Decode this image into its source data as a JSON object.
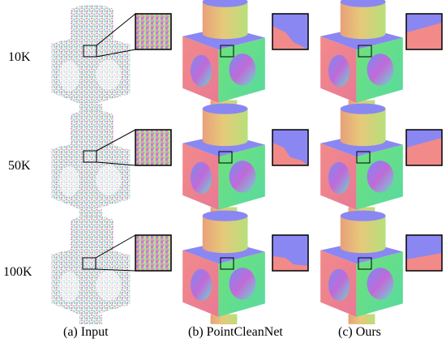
{
  "figure": {
    "row_labels": [
      "10K",
      "50K",
      "100K"
    ],
    "column_labels": [
      "(a) Input",
      "(b) PointCleanNet",
      "(c) Ours"
    ]
  },
  "colors": {
    "top_blue": "#8a87f2",
    "front_green": "#5fe07a",
    "left_pink": "#f27a8a",
    "hole_magenta": "#c06ad8",
    "cylinder_orange": "#e6c27a"
  }
}
